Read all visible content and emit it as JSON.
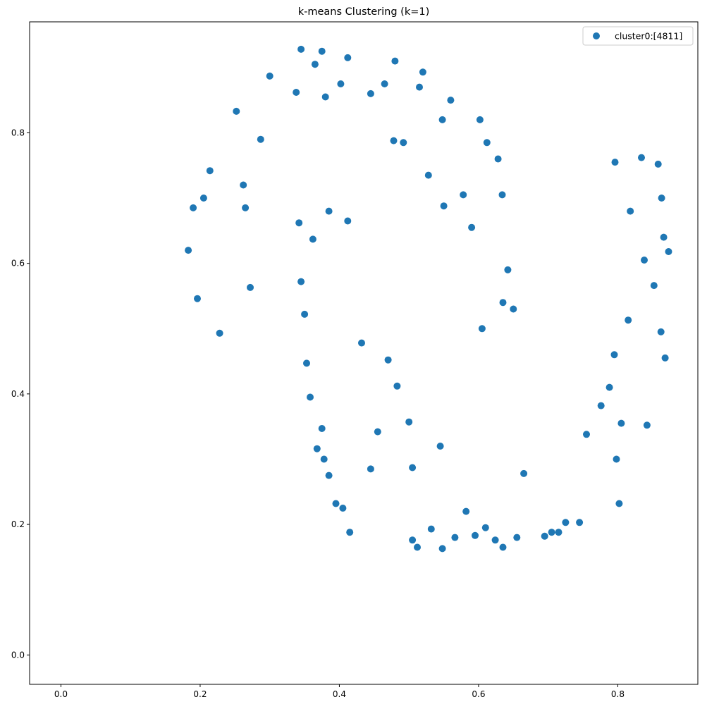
{
  "chart_data": {
    "type": "scatter",
    "title": "k-means Clustering (k=1)",
    "xlabel": "",
    "ylabel": "",
    "xlim": [
      -0.045,
      0.915
    ],
    "ylim": [
      -0.045,
      0.97
    ],
    "xticks": [
      0.0,
      0.2,
      0.4,
      0.6,
      0.8
    ],
    "xtick_labels": [
      "0.0",
      "0.2",
      "0.4",
      "0.6",
      "0.8"
    ],
    "yticks": [
      0.0,
      0.2,
      0.4,
      0.6,
      0.8
    ],
    "ytick_labels": [
      "0.0",
      "0.2",
      "0.4",
      "0.6",
      "0.8"
    ],
    "grid": false,
    "legend": {
      "position": "top-right",
      "entries": [
        "cluster0:[4811]"
      ]
    },
    "series": [
      {
        "name": "cluster0:[4811]",
        "color": "#1f77b4",
        "point_count": 4811,
        "points": [
          [
            0.183,
            0.62
          ],
          [
            0.19,
            0.685
          ],
          [
            0.196,
            0.546
          ],
          [
            0.205,
            0.7
          ],
          [
            0.214,
            0.742
          ],
          [
            0.228,
            0.493
          ],
          [
            0.252,
            0.833
          ],
          [
            0.262,
            0.72
          ],
          [
            0.265,
            0.685
          ],
          [
            0.272,
            0.563
          ],
          [
            0.287,
            0.79
          ],
          [
            0.3,
            0.887
          ],
          [
            0.338,
            0.862
          ],
          [
            0.345,
            0.928
          ],
          [
            0.365,
            0.905
          ],
          [
            0.375,
            0.925
          ],
          [
            0.38,
            0.855
          ],
          [
            0.402,
            0.875
          ],
          [
            0.412,
            0.915
          ],
          [
            0.445,
            0.86
          ],
          [
            0.465,
            0.875
          ],
          [
            0.48,
            0.91
          ],
          [
            0.478,
            0.788
          ],
          [
            0.492,
            0.785
          ],
          [
            0.515,
            0.87
          ],
          [
            0.52,
            0.893
          ],
          [
            0.528,
            0.735
          ],
          [
            0.548,
            0.82
          ],
          [
            0.55,
            0.688
          ],
          [
            0.56,
            0.85
          ],
          [
            0.578,
            0.705
          ],
          [
            0.59,
            0.655
          ],
          [
            0.602,
            0.82
          ],
          [
            0.605,
            0.5
          ],
          [
            0.612,
            0.785
          ],
          [
            0.628,
            0.76
          ],
          [
            0.634,
            0.705
          ],
          [
            0.642,
            0.59
          ],
          [
            0.65,
            0.53
          ],
          [
            0.635,
            0.54
          ],
          [
            0.342,
            0.662
          ],
          [
            0.345,
            0.572
          ],
          [
            0.35,
            0.522
          ],
          [
            0.353,
            0.447
          ],
          [
            0.358,
            0.395
          ],
          [
            0.362,
            0.637
          ],
          [
            0.368,
            0.316
          ],
          [
            0.375,
            0.347
          ],
          [
            0.378,
            0.3
          ],
          [
            0.385,
            0.68
          ],
          [
            0.385,
            0.275
          ],
          [
            0.395,
            0.232
          ],
          [
            0.405,
            0.225
          ],
          [
            0.412,
            0.665
          ],
          [
            0.415,
            0.188
          ],
          [
            0.432,
            0.478
          ],
          [
            0.445,
            0.285
          ],
          [
            0.455,
            0.342
          ],
          [
            0.47,
            0.452
          ],
          [
            0.483,
            0.412
          ],
          [
            0.5,
            0.357
          ],
          [
            0.505,
            0.287
          ],
          [
            0.505,
            0.176
          ],
          [
            0.512,
            0.165
          ],
          [
            0.532,
            0.193
          ],
          [
            0.545,
            0.32
          ],
          [
            0.548,
            0.163
          ],
          [
            0.566,
            0.18
          ],
          [
            0.582,
            0.22
          ],
          [
            0.595,
            0.183
          ],
          [
            0.61,
            0.195
          ],
          [
            0.624,
            0.176
          ],
          [
            0.635,
            0.165
          ],
          [
            0.655,
            0.18
          ],
          [
            0.665,
            0.278
          ],
          [
            0.695,
            0.182
          ],
          [
            0.705,
            0.188
          ],
          [
            0.715,
            0.188
          ],
          [
            0.725,
            0.203
          ],
          [
            0.745,
            0.203
          ],
          [
            0.755,
            0.338
          ],
          [
            0.776,
            0.382
          ],
          [
            0.788,
            0.41
          ],
          [
            0.795,
            0.46
          ],
          [
            0.798,
            0.3
          ],
          [
            0.802,
            0.232
          ],
          [
            0.805,
            0.355
          ],
          [
            0.815,
            0.513
          ],
          [
            0.818,
            0.68
          ],
          [
            0.834,
            0.762
          ],
          [
            0.838,
            0.605
          ],
          [
            0.842,
            0.352
          ],
          [
            0.852,
            0.566
          ],
          [
            0.863,
            0.7
          ],
          [
            0.866,
            0.64
          ],
          [
            0.868,
            0.455
          ],
          [
            0.873,
            0.618
          ],
          [
            0.858,
            0.752
          ],
          [
            0.796,
            0.755
          ],
          [
            0.862,
            0.495
          ]
        ]
      }
    ]
  }
}
